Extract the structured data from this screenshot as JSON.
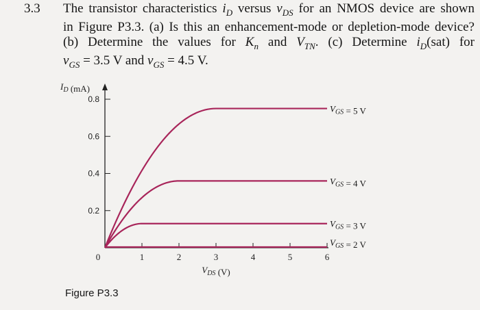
{
  "problem": {
    "number": "3.3",
    "lines": [
      "The transistor characteristics i_D versus v_DS for an NMOS device are shown",
      "in Figure P3.3. (a) Is this an enhancement-mode or depletion-mode device?",
      "(b) Determine the values for K_n and V_TN. (c) Determine i_D(sat) for",
      "v_GS = 3.5 V and v_GS = 4.5 V."
    ]
  },
  "figure": {
    "caption": "Figure P3.3"
  },
  "chart_data": {
    "type": "line",
    "title": "",
    "xlabel": "V_DS (V)",
    "ylabel": "I_D (mA)",
    "xlim": [
      0,
      6
    ],
    "ylim": [
      0,
      0.8
    ],
    "x_ticks": [
      0,
      1,
      2,
      3,
      4,
      5,
      6
    ],
    "y_ticks": [
      0.2,
      0.4,
      0.6,
      0.8
    ],
    "y_tick_labels": [
      "0.2",
      "0.4",
      "0.6",
      "0.8"
    ],
    "x_tick_labels": [
      "0",
      "1",
      "2",
      "3",
      "4",
      "5",
      "6"
    ],
    "grid": false,
    "line_color": "#a8255a",
    "series": [
      {
        "name": "V_GS = 5 V",
        "vsat": 3.0,
        "isat": 0.75
      },
      {
        "name": "V_GS = 4 V",
        "vsat": 2.0,
        "isat": 0.36
      },
      {
        "name": "V_GS = 3 V",
        "vsat": 1.0,
        "isat": 0.13
      },
      {
        "name": "V_GS = 2 V",
        "vsat": 0.0,
        "isat": 0.0
      }
    ]
  }
}
